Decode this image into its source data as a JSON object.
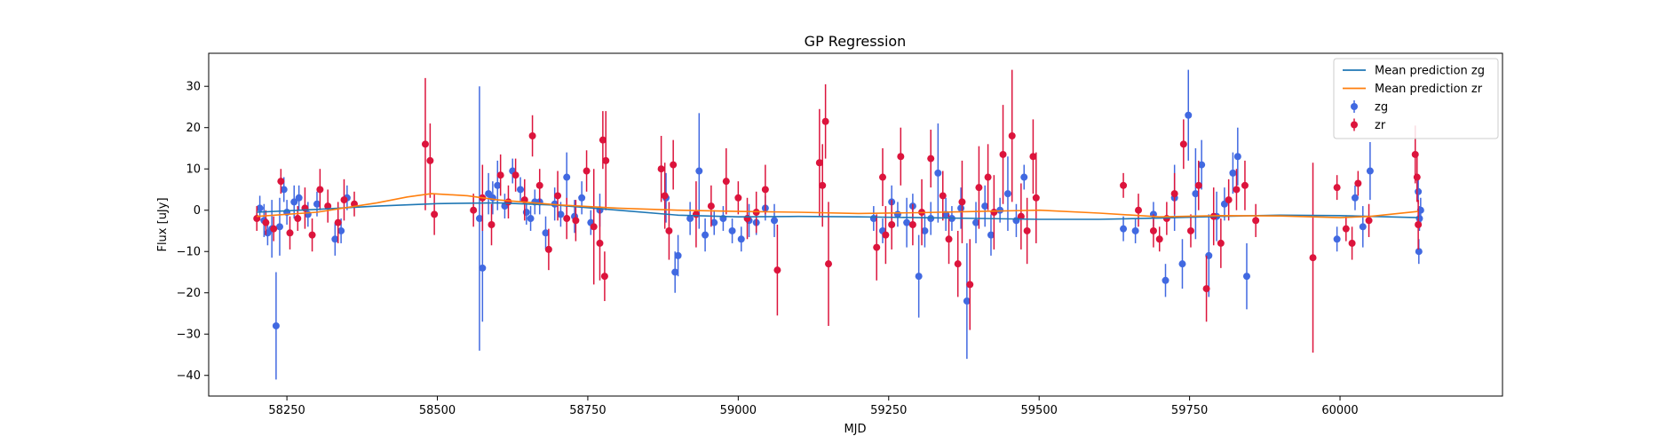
{
  "chart_data": {
    "type": "scatter",
    "title": "GP Regression",
    "xlabel": "MJD",
    "ylabel": "Flux [uJy]",
    "xlim": [
      58120,
      60270
    ],
    "ylim": [
      -45,
      38
    ],
    "xticks": [
      58250,
      58500,
      58750,
      59000,
      59250,
      59500,
      59750,
      60000
    ],
    "yticks": [
      -40,
      -30,
      -20,
      -10,
      0,
      10,
      20,
      30
    ],
    "grid": false,
    "legend_position": "top-right",
    "colors": {
      "zg_points": "#4169E1",
      "zr_points": "#DC143C",
      "zg_mean": "#1f77b4",
      "zr_mean": "#ff7f0e"
    },
    "legend": [
      {
        "label": "Mean prediction zg",
        "kind": "line",
        "color": "#1f77b4"
      },
      {
        "label": "Mean prediction zr",
        "kind": "line",
        "color": "#ff7f0e"
      },
      {
        "label": "zg",
        "kind": "errorbar",
        "color": "#4169E1"
      },
      {
        "label": "zr",
        "kind": "errorbar",
        "color": "#DC143C"
      }
    ],
    "lines": [
      {
        "name": "Mean prediction zg",
        "color": "#1f77b4",
        "x": [
          58200,
          58300,
          58400,
          58500,
          58600,
          58700,
          58800,
          58900,
          59000,
          59100,
          59200,
          59300,
          59400,
          59500,
          59600,
          59700,
          59800,
          59900,
          60000,
          60130
        ],
        "y": [
          -0.5,
          0.2,
          1.0,
          1.6,
          1.8,
          1.2,
          0.0,
          -1.2,
          -1.6,
          -1.5,
          -1.6,
          -1.8,
          -2.0,
          -2.2,
          -2.2,
          -1.9,
          -1.5,
          -1.2,
          -1.3,
          -1.8
        ]
      },
      {
        "name": "Mean prediction zr",
        "color": "#ff7f0e",
        "x": [
          58200,
          58300,
          58400,
          58450,
          58490,
          58550,
          58600,
          58700,
          58800,
          58900,
          59000,
          59100,
          59200,
          59300,
          59400,
          59500,
          59600,
          59700,
          59800,
          59900,
          60000,
          60050,
          60130
        ],
        "y": [
          -1.5,
          -0.5,
          1.8,
          3.2,
          4.0,
          3.5,
          2.5,
          1.3,
          0.5,
          0.0,
          -0.3,
          -0.5,
          -0.8,
          -0.6,
          -0.3,
          0.0,
          -0.7,
          -1.6,
          -1.3,
          -1.4,
          -1.8,
          -1.5,
          -0.3
        ]
      }
    ],
    "series": [
      {
        "name": "zg",
        "color": "#4169E1",
        "x": [
          58205,
          58212,
          58218,
          58225,
          58232,
          58238,
          58245,
          58250,
          58262,
          58270,
          58285,
          58300,
          58330,
          58340,
          58350,
          58570,
          58575,
          58585,
          58592,
          58600,
          58612,
          58625,
          58638,
          58648,
          58655,
          58662,
          58670,
          58680,
          58695,
          58705,
          58715,
          58728,
          58740,
          58755,
          58770,
          58880,
          58895,
          58900,
          58920,
          58935,
          58945,
          58960,
          58975,
          58990,
          59005,
          59018,
          59030,
          59045,
          59060,
          59225,
          59240,
          59255,
          59265,
          59280,
          59290,
          59300,
          59310,
          59320,
          59332,
          59345,
          59355,
          59370,
          59380,
          59395,
          59410,
          59420,
          59435,
          59448,
          59462,
          59475,
          59640,
          59660,
          59690,
          59710,
          59725,
          59738,
          59748,
          59760,
          59770,
          59782,
          59795,
          59808,
          59822,
          59830,
          59845,
          59995,
          60025,
          60038,
          60050,
          60130,
          60131,
          60132,
          60134
        ],
        "y": [
          0.5,
          -2.5,
          -5.5,
          -4.5,
          -28,
          -4,
          5,
          -0.5,
          2,
          3,
          -1,
          1.5,
          -7,
          -5,
          3,
          -2,
          -14,
          4,
          3,
          6,
          1,
          9.5,
          5,
          -0.5,
          -2,
          2,
          2,
          -5.5,
          1.5,
          -1,
          8,
          -1.5,
          3,
          -3,
          0,
          3,
          -15,
          -11,
          -2,
          9.5,
          -6,
          -3,
          -2,
          -5,
          -7,
          -2.5,
          -3,
          0.5,
          -2.5,
          -2,
          -5,
          2,
          -1,
          -3,
          1,
          -16,
          -5,
          -2,
          9,
          -1,
          -2,
          0.5,
          -22,
          -3,
          1,
          -6,
          0,
          4,
          -2.5,
          8,
          -4.5,
          -5,
          -1,
          -17,
          3,
          -13,
          23,
          4,
          11,
          -11,
          -1.5,
          1.5,
          9,
          13,
          -16,
          -7,
          3,
          -4,
          9.5,
          4.5,
          -10,
          -2,
          0
        ],
        "err": [
          3,
          4,
          3,
          7,
          13,
          7,
          3,
          3,
          4,
          3,
          3,
          3,
          4,
          3,
          3,
          32,
          13,
          5,
          4,
          6,
          3,
          3,
          3,
          3,
          3,
          3,
          3,
          4,
          4,
          3,
          6,
          4,
          4,
          3,
          4,
          6,
          5,
          5,
          4,
          14,
          4,
          3,
          3,
          3,
          3,
          4,
          3,
          3,
          4,
          3,
          3,
          4,
          3,
          6,
          3,
          10,
          4,
          4,
          12,
          4,
          3,
          5,
          14,
          5,
          5,
          5,
          3,
          9,
          4,
          3,
          3,
          3,
          3,
          4,
          8,
          6,
          11,
          11,
          6,
          10,
          6,
          4,
          5,
          7,
          8,
          3,
          3,
          5,
          7,
          3,
          3,
          3,
          3
        ]
      },
      {
        "name": "zr",
        "color": "#DC143C",
        "x": [
          58200,
          58215,
          58228,
          58240,
          58255,
          58268,
          58280,
          58292,
          58305,
          58318,
          58335,
          58345,
          58362,
          58480,
          58488,
          58495,
          58560,
          58575,
          58590,
          58605,
          58618,
          58630,
          58645,
          58658,
          58670,
          58685,
          58700,
          58715,
          58730,
          58748,
          58760,
          58770,
          58775,
          58778,
          58780,
          58872,
          58878,
          58885,
          58892,
          58930,
          58955,
          58980,
          59000,
          59015,
          59030,
          59045,
          59065,
          59135,
          59140,
          59145,
          59150,
          59230,
          59240,
          59245,
          59255,
          59270,
          59290,
          59305,
          59320,
          59340,
          59350,
          59365,
          59372,
          59385,
          59400,
          59415,
          59425,
          59440,
          59455,
          59470,
          59480,
          59490,
          59495,
          59640,
          59665,
          59690,
          59700,
          59712,
          59725,
          59740,
          59752,
          59765,
          59778,
          59790,
          59802,
          59815,
          59828,
          59842,
          59860,
          59955,
          59995,
          60010,
          60020,
          60030,
          60048,
          60125,
          60128,
          60130
        ],
        "y": [
          -2,
          -3,
          -4.5,
          7,
          -5.5,
          -2,
          0.5,
          -6,
          5,
          1,
          -3,
          2.5,
          1.5,
          16,
          12,
          -1,
          0,
          3,
          -3.5,
          8.5,
          2,
          8.5,
          2.5,
          18,
          6,
          -9.5,
          3.5,
          -2,
          -2.5,
          9.5,
          -4,
          -8,
          17,
          -16,
          12,
          10,
          3.5,
          -5,
          11,
          -1,
          1,
          7,
          3,
          -2,
          -0.5,
          5,
          -14.5,
          11.5,
          6,
          21.5,
          -13,
          -9,
          8,
          -6,
          -3.5,
          13,
          -3.5,
          -0.5,
          12.5,
          3.5,
          -7,
          -13,
          2,
          -18,
          5.5,
          8,
          -0.5,
          13.5,
          18,
          -1.5,
          -5,
          13,
          3,
          6,
          0,
          -5,
          -7,
          -2,
          4,
          16,
          -5,
          6,
          -19,
          -1.5,
          -8,
          2.5,
          5,
          6,
          -2.5,
          -11.5,
          5.5,
          -4.5,
          -8,
          6.5,
          -2.5,
          13.5,
          8,
          -3.5
        ],
        "err": [
          3,
          3,
          3,
          3,
          4,
          3,
          5,
          4,
          5,
          4,
          5,
          5,
          3,
          16,
          9,
          5,
          4,
          8,
          5,
          5,
          4,
          4,
          5,
          5,
          4,
          5,
          6,
          5,
          5,
          5,
          14,
          9,
          7,
          6,
          12,
          8,
          8,
          7,
          6,
          8,
          5,
          8,
          4,
          5,
          5,
          6,
          11,
          13,
          10,
          9,
          15,
          8,
          7,
          7,
          6,
          7,
          5,
          8,
          7,
          6,
          6,
          8,
          10,
          11,
          10,
          8,
          9,
          12,
          16,
          8,
          8,
          9,
          11,
          3,
          4,
          4,
          3,
          4,
          5,
          6,
          4,
          6,
          8,
          7,
          6,
          5,
          5,
          6,
          4,
          23,
          3,
          3,
          4,
          3,
          4,
          7,
          6,
          6
        ]
      }
    ]
  }
}
